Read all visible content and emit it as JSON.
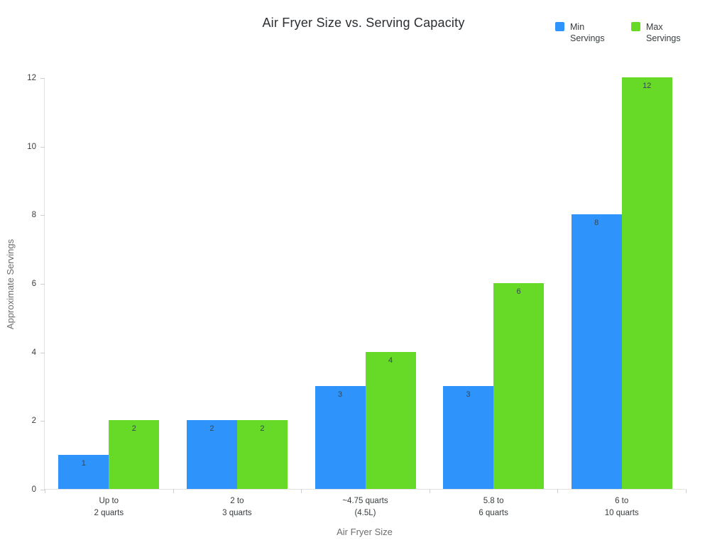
{
  "chart_data": {
    "type": "bar",
    "title": "Air Fryer Size vs. Serving Capacity",
    "xlabel": "Air Fryer Size",
    "ylabel": "Approximate Servings",
    "categories": [
      "Up to\n2 quarts",
      "2 to\n3 quarts",
      "~4.75 quarts\n(4.5L)",
      "5.8 to\n6 quarts",
      "6 to\n10 quarts"
    ],
    "series": [
      {
        "name": "Min Servings",
        "color": "#2E93FA",
        "values": [
          1,
          2,
          3,
          3,
          8
        ]
      },
      {
        "name": "Max Servings",
        "color": "#66DA26",
        "values": [
          2,
          2,
          4,
          6,
          12
        ]
      }
    ],
    "ylim": [
      0,
      12
    ],
    "yticks": [
      0,
      2,
      4,
      6,
      8,
      10,
      12
    ],
    "grid": false,
    "legend_position": "top-right",
    "value_labels_shown": true
  }
}
